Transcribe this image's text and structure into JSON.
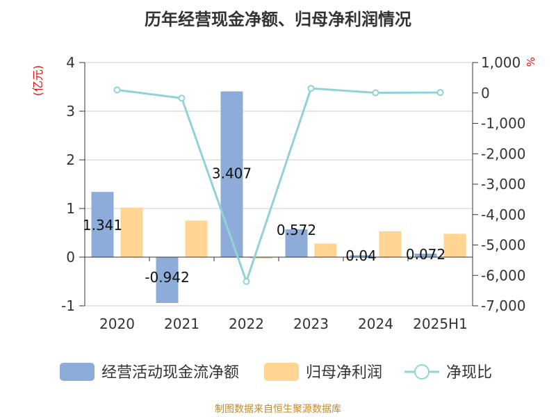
{
  "chart_data": {
    "type": "bar",
    "title": "历年经营现金净额、归母净利润情况",
    "categories": [
      "2020",
      "2021",
      "2022",
      "2023",
      "2024",
      "2025H1"
    ],
    "left_axis": {
      "unit_label": "(亿元)",
      "ylim": [
        -1,
        4
      ],
      "ticks": [
        -1,
        0,
        1,
        2,
        3,
        4
      ],
      "tick_labels": [
        "-1",
        "0",
        "1",
        "2",
        "3",
        "4"
      ]
    },
    "right_axis": {
      "unit_label": "%",
      "ylim": [
        -7000,
        1000
      ],
      "ticks": [
        1000,
        0,
        -1000,
        -2000,
        -3000,
        -4000,
        -5000,
        -6000,
        -7000
      ],
      "tick_labels": [
        "1,000",
        "0",
        "-1,000",
        "-2,000",
        "-3,000",
        "-4,000",
        "-5,000",
        "-6,000",
        "-7,000"
      ]
    },
    "series": [
      {
        "name": "经营活动现金流净额",
        "kind": "bar",
        "axis": "left",
        "color": "#8eacd9",
        "values": [
          1.341,
          -0.942,
          3.407,
          0.572,
          0.04,
          0.072
        ],
        "data_labels": [
          "1.341",
          "-0.942",
          "3.407",
          "0.572",
          "0.04",
          "0.072"
        ]
      },
      {
        "name": "归母净利润",
        "kind": "bar",
        "axis": "left",
        "color": "#ffd591",
        "values": [
          1.02,
          0.75,
          -0.03,
          0.28,
          0.53,
          0.48
        ]
      },
      {
        "name": "净现比",
        "kind": "line",
        "axis": "right",
        "color": "#8fd3d8",
        "values": [
          100,
          -170,
          -6200,
          150,
          5,
          15
        ]
      }
    ],
    "grid": true,
    "legend_position": "bottom",
    "source": "制图数据来自恒生聚源数据库"
  }
}
